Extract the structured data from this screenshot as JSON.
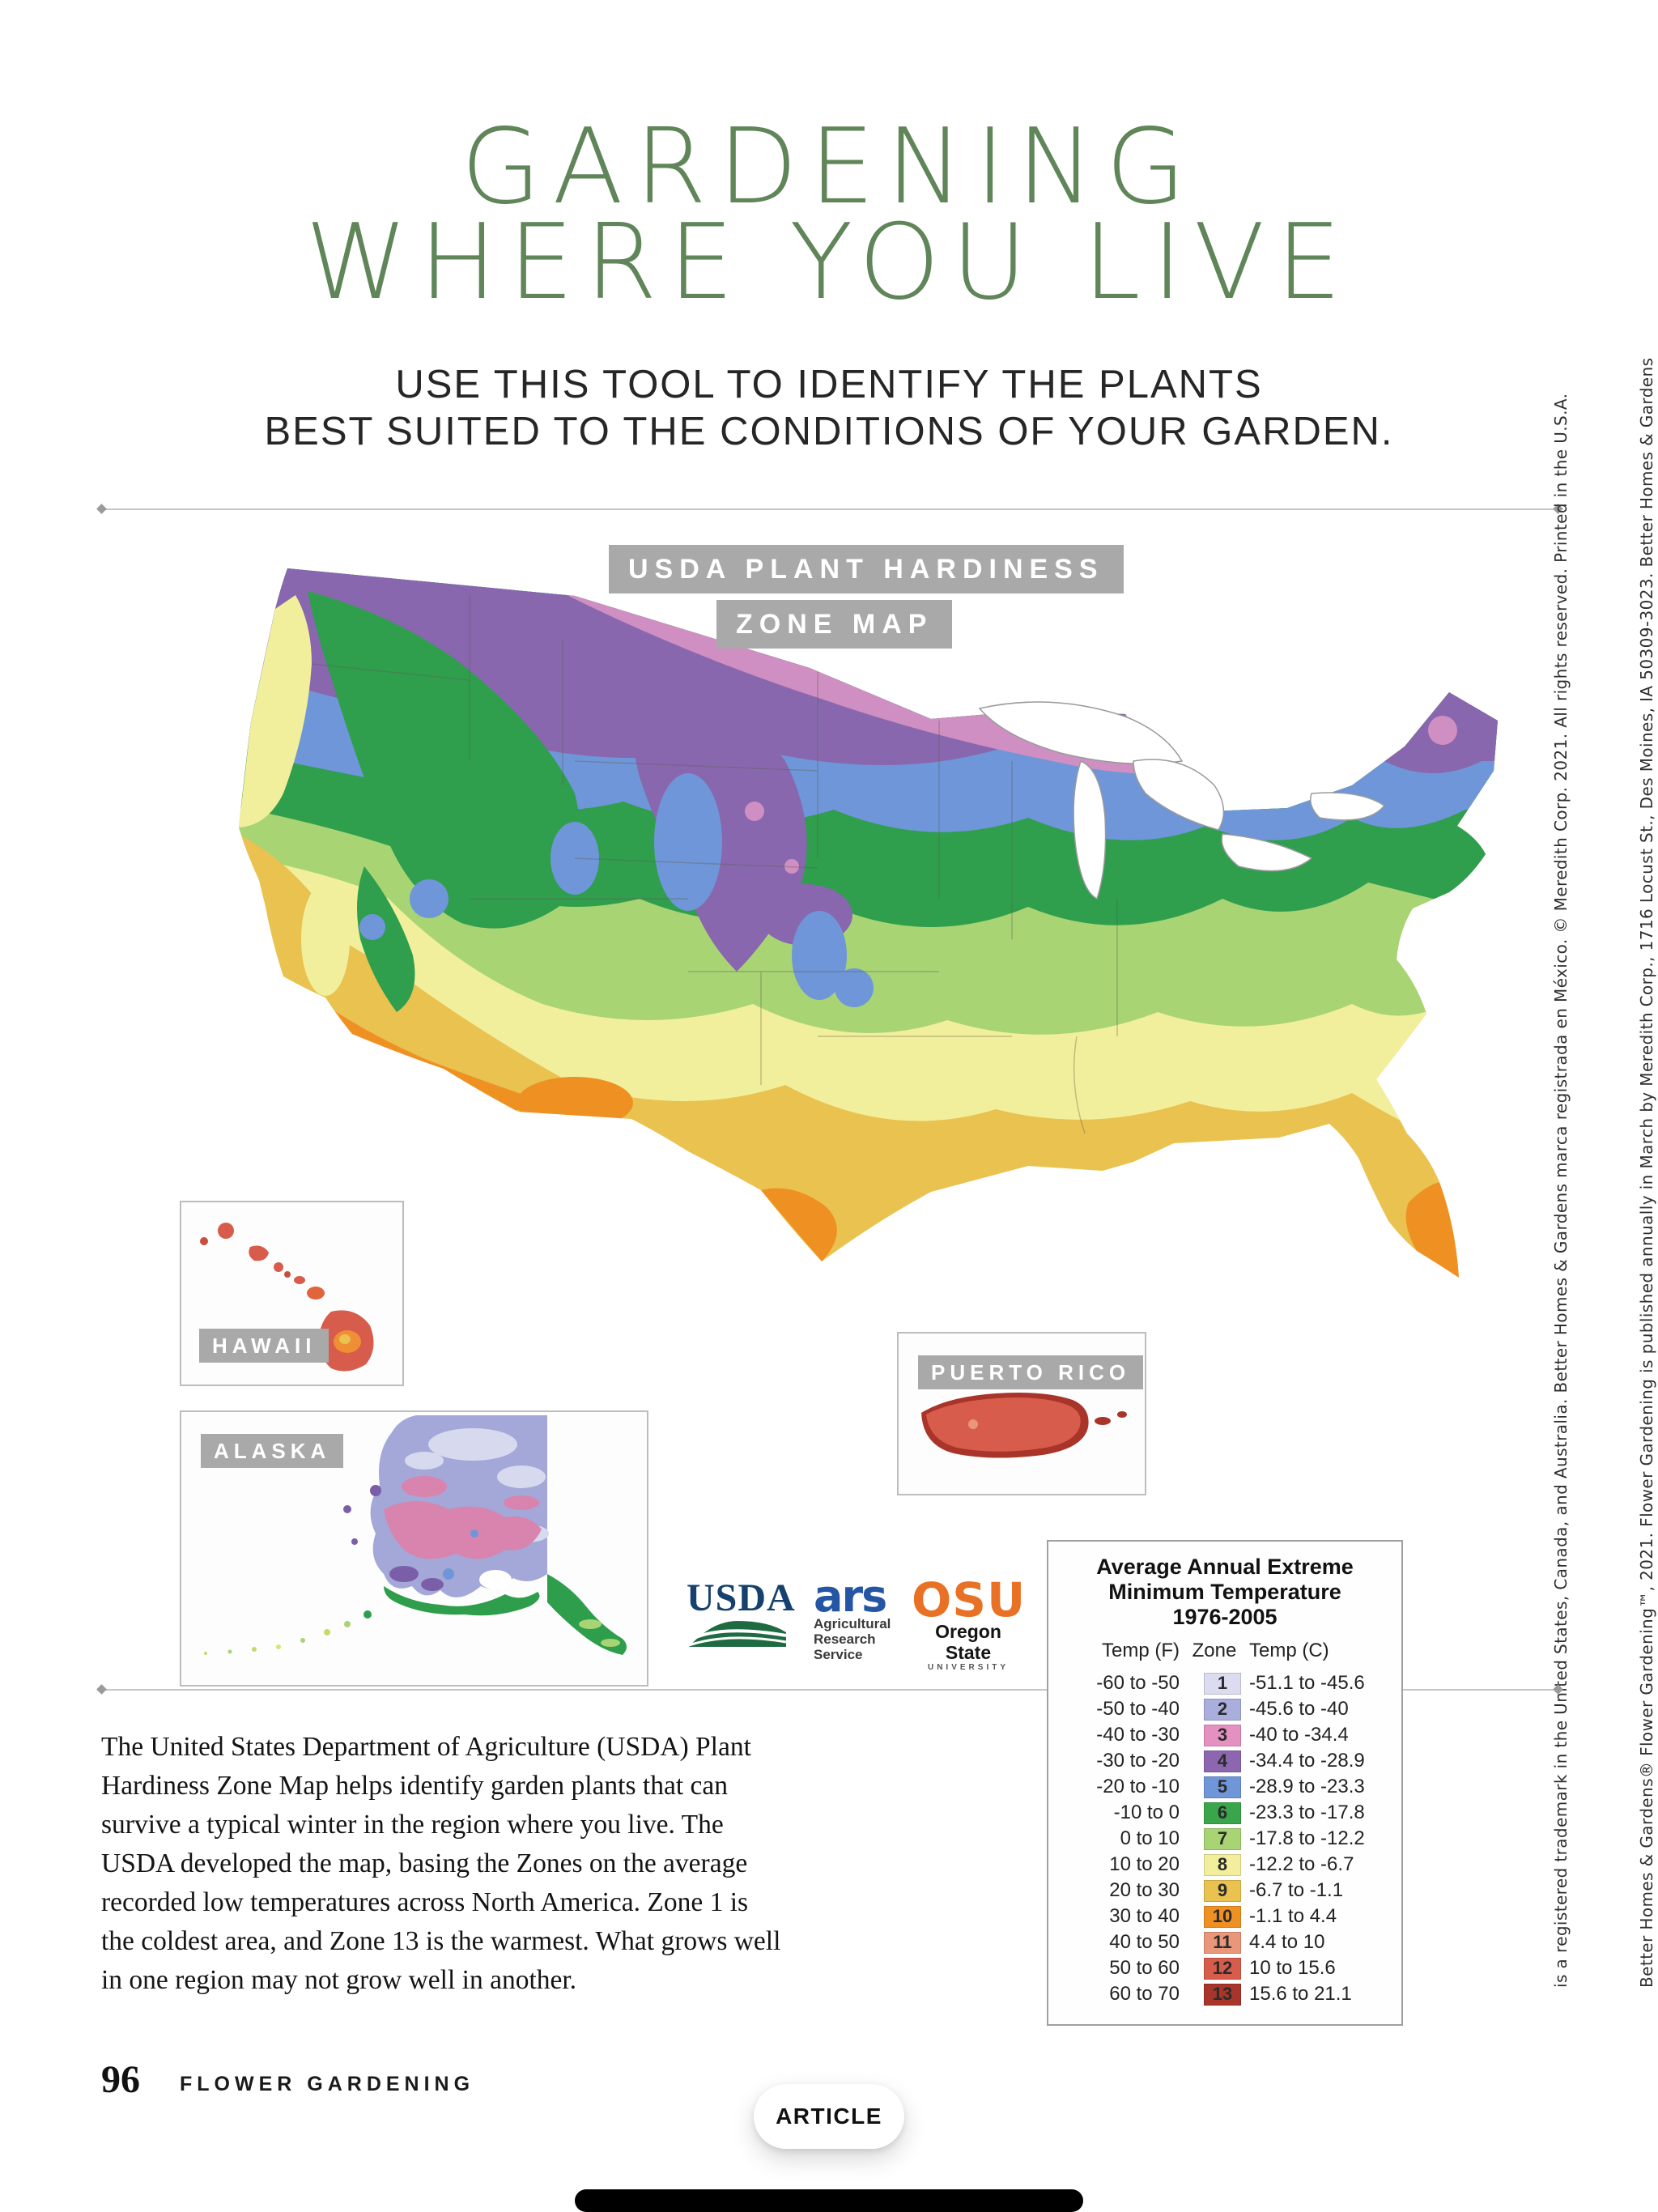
{
  "page": {
    "title_line1": "GARDENING",
    "title_line2": "WHERE YOU LIVE",
    "subtitle_line1": "USE THIS TOOL TO IDENTIFY THE PLANTS",
    "subtitle_line2": "BEST SUITED TO THE CONDITIONS OF YOUR GARDEN."
  },
  "map": {
    "badge_line1": "USDA PLANT HARDINESS",
    "badge_line2": "ZONE MAP",
    "insets": {
      "hawaii": "HAWAII",
      "alaska": "ALASKA",
      "puerto_rico": "PUERTO RICO"
    },
    "logos": {
      "usda": "USDA",
      "ars": "ars",
      "ars_sub1": "Agricultural",
      "ars_sub2": "Research",
      "ars_sub3": "Service",
      "osu": "OSU",
      "osu_sub": "Oregon State",
      "osu_sub2": "UNIVERSITY"
    }
  },
  "legend": {
    "title_line1": "Average Annual Extreme",
    "title_line2": "Minimum Temperature",
    "title_line3": "1976-2005",
    "col_f": "Temp (F)",
    "col_zone": "Zone",
    "col_c": "Temp (C)",
    "rows": [
      {
        "f": "-60 to -50",
        "zone": "1",
        "c": "-51.1 to -45.6",
        "color": "#dcdcf0"
      },
      {
        "f": "-50 to -40",
        "zone": "2",
        "c": "-45.6 to -40",
        "color": "#a9aedd"
      },
      {
        "f": "-40 to -30",
        "zone": "3",
        "c": "-40 to -34.4",
        "color": "#e490c0"
      },
      {
        "f": "-30 to -20",
        "zone": "4",
        "c": "-34.4 to -28.9",
        "color": "#8d66b0"
      },
      {
        "f": "-20 to -10",
        "zone": "5",
        "c": "-28.9 to -23.3",
        "color": "#6f96d8"
      },
      {
        "f": "-10 to 0",
        "zone": "6",
        "c": "-23.3 to -17.8",
        "color": "#3aa64c"
      },
      {
        "f": "0 to 10",
        "zone": "7",
        "c": "-17.8 to -12.2",
        "color": "#a8d474"
      },
      {
        "f": "10 to 20",
        "zone": "8",
        "c": "-12.2 to -6.7",
        "color": "#f2ef9c"
      },
      {
        "f": "20 to 30",
        "zone": "9",
        "c": "-6.7 to -1.1",
        "color": "#e9c250"
      },
      {
        "f": "30 to 40",
        "zone": "10",
        "c": "-1.1 to 4.4",
        "color": "#ef9023"
      },
      {
        "f": "40 to 50",
        "zone": "11",
        "c": "4.4 to 10",
        "color": "#e9967a"
      },
      {
        "f": "50 to 60",
        "zone": "12",
        "c": "10 to 15.6",
        "color": "#d85c4c"
      },
      {
        "f": "60 to 70",
        "zone": "13",
        "c": "15.6 to 21.1",
        "color": "#a93429"
      }
    ]
  },
  "body": {
    "paragraph": "The United States Department of Agriculture (USDA) Plant Hardiness Zone Map helps identify garden plants that can survive a typical winter in the region where you live. The USDA developed the map, basing the Zones on the average recorded low temperatures across North America. Zone 1 is the coldest area, and Zone 13 is the warmest. What grows well in one region may not grow well in another."
  },
  "sidebar": {
    "line1": "Better Homes & Gardens® Flower Gardening™, 2021. Flower Gardening is published annually in March by Meredith Corp., 1716 Locust St., Des Moines, IA 50309-3023. Better Homes & Gardens",
    "line2": "is a registered trademark in the United States, Canada, and Australia. Better Homes & Gardens marca registrada en México. © Meredith Corp. 2021. All rights reserved. Printed in the U.S.A."
  },
  "footer": {
    "page_number": "96",
    "section": "FLOWER GARDENING",
    "article_button": "ARTICLE"
  },
  "colors": {
    "title_green": "#5f8559",
    "badge_gray": "#a9a9a9"
  }
}
